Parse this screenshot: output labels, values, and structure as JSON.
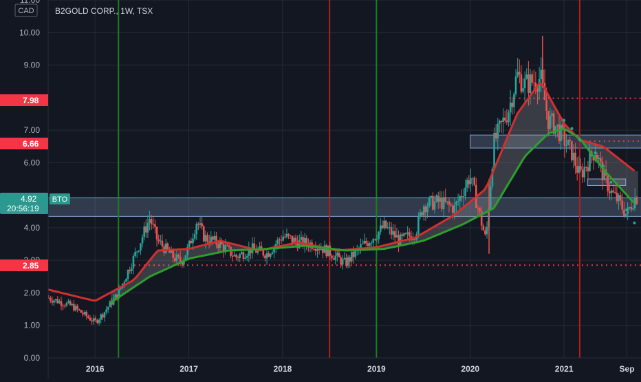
{
  "header": {
    "currency": "CAD",
    "title": "B2GOLD CORP., 1W, TSX"
  },
  "colors": {
    "background": "#131722",
    "grid": "#262b38",
    "up": "#26a69a",
    "down": "#ef5350",
    "green_line": "#1e7d1e",
    "red_line": "#b71c1c",
    "ma_fast": "#d32f2f",
    "ma_slow": "#2e9e2e",
    "zone_fill": "#8ea8cc",
    "label_red": "#f23645",
    "label_teal": "#2b998f"
  },
  "price_labels": {
    "current_price": "4.92",
    "countdown": "20:56:19",
    "bto": "BTO",
    "level_798": "7.98",
    "level_666": "6.66",
    "level_285": "2.85"
  },
  "chart_data": {
    "type": "candlestick",
    "title": "B2GOLD CORP., 1W, TSX",
    "currency": "CAD",
    "y_ticks": [
      "0.00",
      "1.00",
      "2.00",
      "3.00",
      "4.00",
      "6.00",
      "7.00",
      "9.00",
      "10.00",
      "11.00"
    ],
    "x_ticks": [
      "2016",
      "2017",
      "2018",
      "2019",
      "2020",
      "2021",
      "Sep"
    ],
    "ylim": [
      0,
      11
    ],
    "grid": true,
    "vertical_lines": [
      {
        "date": "2016-04",
        "color": "green"
      },
      {
        "date": "2018-07",
        "color": "red"
      },
      {
        "date": "2019-01",
        "color": "green"
      },
      {
        "date": "2021-03",
        "color": "red"
      }
    ],
    "horizontal_levels": [
      {
        "value": 7.98,
        "style": "dotted",
        "color": "red",
        "from": "2020-06"
      },
      {
        "value": 6.66,
        "style": "dotted",
        "color": "red",
        "from": "2021-03"
      },
      {
        "value": 2.85,
        "style": "dotted",
        "color": "red",
        "from": "2016-06"
      }
    ],
    "zones": [
      {
        "from": "2015-07",
        "to": "2021-10",
        "low": 4.35,
        "high": 4.92
      },
      {
        "from": "2020-01",
        "to": "2021-10",
        "low": 6.45,
        "high": 6.85
      },
      {
        "from": "2021-04",
        "to": "2021-08",
        "low": 5.3,
        "high": 5.5
      }
    ],
    "price_path": [
      [
        "2015-07",
        1.85
      ],
      [
        "2015-10",
        1.6
      ],
      [
        "2016-01",
        1.1
      ],
      [
        "2016-02",
        1.35
      ],
      [
        "2016-04",
        2.0
      ],
      [
        "2016-06",
        3.1
      ],
      [
        "2016-08",
        4.3
      ],
      [
        "2016-09",
        3.6
      ],
      [
        "2016-11",
        3.1
      ],
      [
        "2016-12",
        2.95
      ],
      [
        "2017-01",
        3.4
      ],
      [
        "2017-02",
        4.2
      ],
      [
        "2017-03",
        3.7
      ],
      [
        "2017-05",
        3.5
      ],
      [
        "2017-07",
        3.1
      ],
      [
        "2017-09",
        3.35
      ],
      [
        "2017-11",
        3.2
      ],
      [
        "2018-01",
        3.75
      ],
      [
        "2018-03",
        3.55
      ],
      [
        "2018-05",
        3.5
      ],
      [
        "2018-07",
        3.25
      ],
      [
        "2018-09",
        2.9
      ],
      [
        "2018-11",
        3.4
      ],
      [
        "2019-01",
        3.8
      ],
      [
        "2019-02",
        4.05
      ],
      [
        "2019-04",
        3.6
      ],
      [
        "2019-06",
        3.85
      ],
      [
        "2019-07",
        4.7
      ],
      [
        "2019-09",
        4.8
      ],
      [
        "2019-11",
        4.6
      ],
      [
        "2020-01",
        5.6
      ],
      [
        "2020-03",
        3.6
      ],
      [
        "2020-04",
        6.6
      ],
      [
        "2020-06",
        7.7
      ],
      [
        "2020-07",
        8.7
      ],
      [
        "2020-08",
        8.4
      ],
      [
        "2020-10",
        8.6
      ],
      [
        "2020-11",
        7.3
      ],
      [
        "2020-12",
        7.1
      ],
      [
        "2021-02",
        6.3
      ],
      [
        "2021-03",
        5.6
      ],
      [
        "2021-05",
        6.4
      ],
      [
        "2021-06",
        5.6
      ],
      [
        "2021-07",
        5.1
      ],
      [
        "2021-08",
        4.8
      ],
      [
        "2021-09",
        4.4
      ],
      [
        "2021-10",
        4.92
      ]
    ],
    "ma_fast": [
      [
        "2015-07",
        2.1
      ],
      [
        "2016-01",
        1.75
      ],
      [
        "2016-06",
        2.4
      ],
      [
        "2016-09",
        3.3
      ],
      [
        "2017-01",
        3.35
      ],
      [
        "2017-05",
        3.6
      ],
      [
        "2017-10",
        3.3
      ],
      [
        "2018-03",
        3.55
      ],
      [
        "2018-08",
        3.3
      ],
      [
        "2019-01",
        3.4
      ],
      [
        "2019-06",
        3.7
      ],
      [
        "2019-11",
        4.4
      ],
      [
        "2020-03",
        5.2
      ],
      [
        "2020-07",
        7.5
      ],
      [
        "2020-10",
        8.5
      ],
      [
        "2021-01",
        7.2
      ],
      [
        "2021-03",
        6.7
      ],
      [
        "2021-06",
        6.5
      ],
      [
        "2021-10",
        5.75
      ]
    ],
    "ma_slow": [
      [
        "2016-03",
        1.7
      ],
      [
        "2016-08",
        2.5
      ],
      [
        "2017-01",
        3.05
      ],
      [
        "2017-06",
        3.3
      ],
      [
        "2017-11",
        3.35
      ],
      [
        "2018-04",
        3.45
      ],
      [
        "2018-09",
        3.3
      ],
      [
        "2019-02",
        3.35
      ],
      [
        "2019-07",
        3.6
      ],
      [
        "2019-12",
        4.1
      ],
      [
        "2020-04",
        4.6
      ],
      [
        "2020-08",
        6.2
      ],
      [
        "2020-11",
        6.9
      ],
      [
        "2021-01",
        7.05
      ],
      [
        "2021-03",
        6.75
      ],
      [
        "2021-06",
        5.8
      ],
      [
        "2021-10",
        4.75
      ]
    ],
    "dots": [
      [
        "2021-01",
        7.3
      ],
      [
        "2021-02",
        7.05
      ],
      [
        "2021-03",
        6.7
      ],
      [
        "2021-05",
        6.3
      ],
      [
        "2021-06",
        5.9
      ],
      [
        "2021-07",
        5.4
      ],
      [
        "2021-08",
        4.95
      ],
      [
        "2021-09",
        4.55
      ],
      [
        "2021-10",
        4.15
      ]
    ]
  }
}
